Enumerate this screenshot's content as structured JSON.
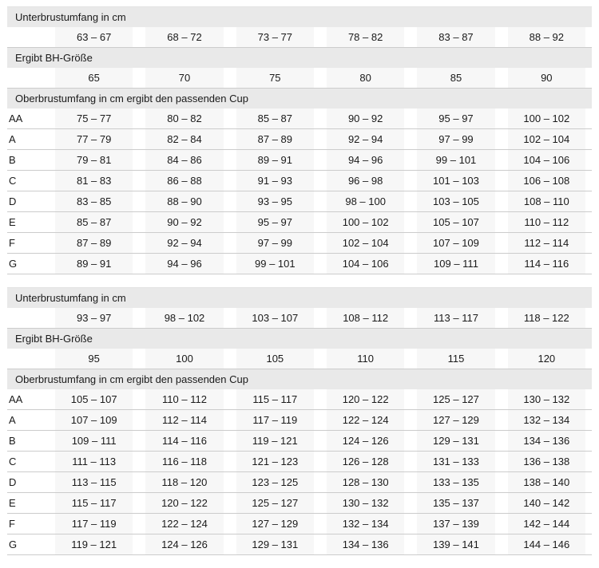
{
  "colors": {
    "band_background": "#e9e9e9",
    "value_cell_background": "#f7f7f7",
    "row_divider": "#cccccc",
    "text": "#1a1a1a",
    "page_background": "#ffffff"
  },
  "chart_data": [
    {
      "type": "table",
      "underbust_label": "Unterbrustumfang in cm",
      "underbust_ranges": [
        "63 – 67",
        "68 – 72",
        "73 – 77",
        "78 – 82",
        "83 – 87",
        "88 – 92"
      ],
      "band_size_label": "Ergibt BH-Größe",
      "band_sizes": [
        "65",
        "70",
        "75",
        "80",
        "85",
        "90"
      ],
      "cup_label": "Oberbrustumfang in cm ergibt den passenden Cup",
      "cup_rows": [
        {
          "cup": "AA",
          "ranges": [
            "75 – 77",
            "80 – 82",
            "85 – 87",
            "90 – 92",
            "95 – 97",
            "100 – 102"
          ]
        },
        {
          "cup": "A",
          "ranges": [
            "77 – 79",
            "82 – 84",
            "87 – 89",
            "92 – 94",
            "97 – 99",
            "102 – 104"
          ]
        },
        {
          "cup": "B",
          "ranges": [
            "79 – 81",
            "84 – 86",
            "89 – 91",
            "94 – 96",
            "99 – 101",
            "104 – 106"
          ]
        },
        {
          "cup": "C",
          "ranges": [
            "81 – 83",
            "86 – 88",
            "91 – 93",
            "96 – 98",
            "101 – 103",
            "106 – 108"
          ]
        },
        {
          "cup": "D",
          "ranges": [
            "83 – 85",
            "88 – 90",
            "93 – 95",
            "98 – 100",
            "103 – 105",
            "108 – 110"
          ]
        },
        {
          "cup": "E",
          "ranges": [
            "85 – 87",
            "90 – 92",
            "95 – 97",
            "100 – 102",
            "105 – 107",
            "110 – 112"
          ]
        },
        {
          "cup": "F",
          "ranges": [
            "87 – 89",
            "92 – 94",
            "97 – 99",
            "102 – 104",
            "107 – 109",
            "112 – 114"
          ]
        },
        {
          "cup": "G",
          "ranges": [
            "89 – 91",
            "94 – 96",
            "99 – 101",
            "104 – 106",
            "109 – 111",
            "114 – 116"
          ]
        }
      ]
    },
    {
      "type": "table",
      "underbust_label": "Unterbrustumfang in cm",
      "underbust_ranges": [
        "93 – 97",
        "98 – 102",
        "103 – 107",
        "108 – 112",
        "113 – 117",
        "118 – 122"
      ],
      "band_size_label": "Ergibt BH-Größe",
      "band_sizes": [
        "95",
        "100",
        "105",
        "110",
        "115",
        "120"
      ],
      "cup_label": "Oberbrustumfang in cm ergibt den passenden Cup",
      "cup_rows": [
        {
          "cup": "AA",
          "ranges": [
            "105 – 107",
            "110 – 112",
            "115 – 117",
            "120 – 122",
            "125 – 127",
            "130 – 132"
          ]
        },
        {
          "cup": "A",
          "ranges": [
            "107 – 109",
            "112 – 114",
            "117 – 119",
            "122 – 124",
            "127 – 129",
            "132 – 134"
          ]
        },
        {
          "cup": "B",
          "ranges": [
            "109 – 111",
            "114 – 116",
            "119 – 121",
            "124 – 126",
            "129 – 131",
            "134 – 136"
          ]
        },
        {
          "cup": "C",
          "ranges": [
            "111 – 113",
            "116 – 118",
            "121 – 123",
            "126 – 128",
            "131 – 133",
            "136 – 138"
          ]
        },
        {
          "cup": "D",
          "ranges": [
            "113 – 115",
            "118 – 120",
            "123 – 125",
            "128 – 130",
            "133 – 135",
            "138 – 140"
          ]
        },
        {
          "cup": "E",
          "ranges": [
            "115 – 117",
            "120 – 122",
            "125 – 127",
            "130 – 132",
            "135 – 137",
            "140 – 142"
          ]
        },
        {
          "cup": "F",
          "ranges": [
            "117 – 119",
            "122 – 124",
            "127 – 129",
            "132 – 134",
            "137 – 139",
            "142 – 144"
          ]
        },
        {
          "cup": "G",
          "ranges": [
            "119 – 121",
            "124 – 126",
            "129 – 131",
            "134 – 136",
            "139 – 141",
            "144 – 146"
          ]
        }
      ]
    }
  ]
}
